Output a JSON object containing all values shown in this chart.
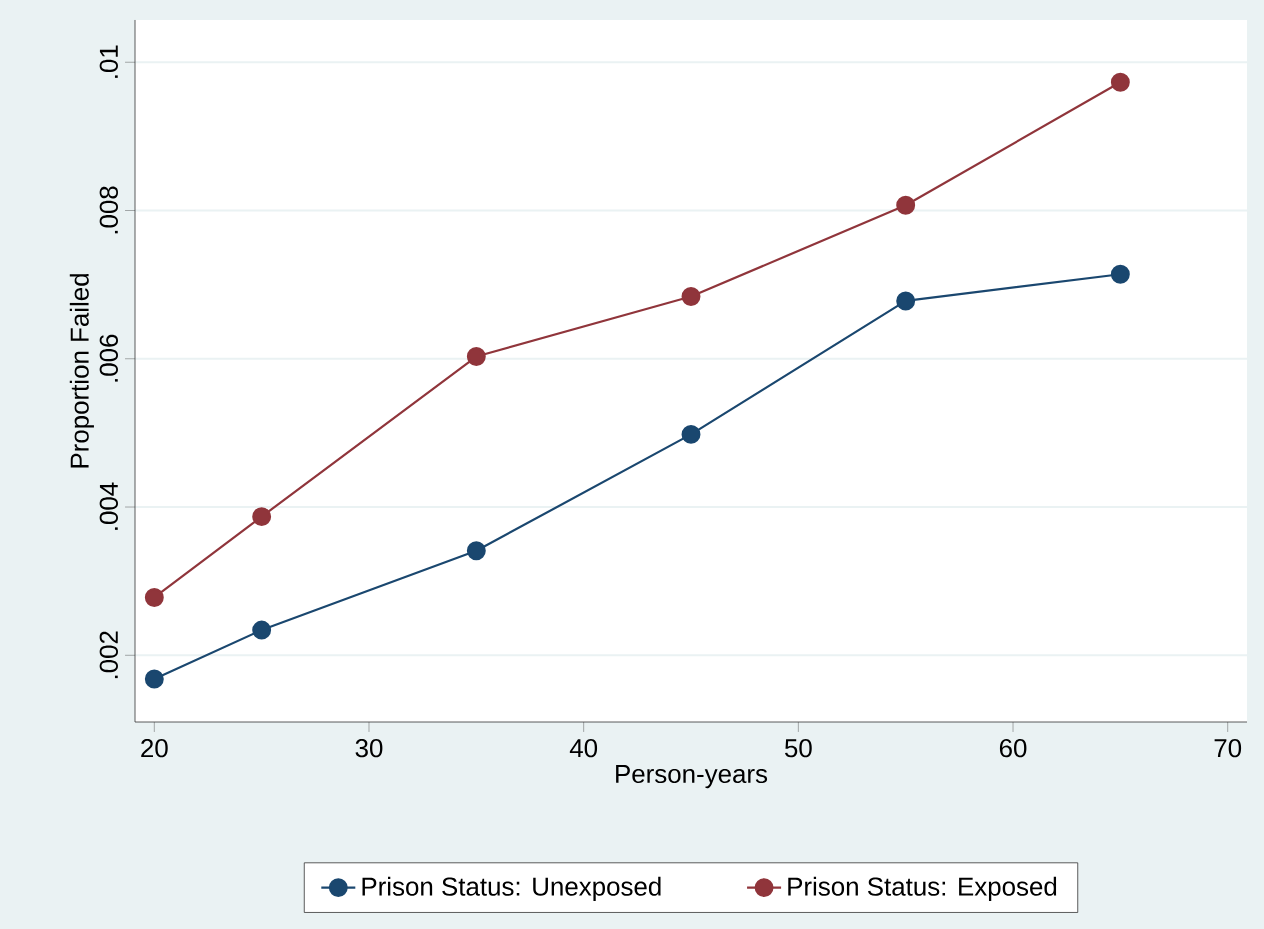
{
  "chart_data": {
    "type": "line",
    "xlabel": "Person-years",
    "ylabel": "Proportion Failed",
    "x": [
      20,
      25,
      35,
      45,
      55,
      65
    ],
    "series": [
      {
        "name": "Prison Status: Unexposed",
        "color": "#1a476f",
        "values": [
          0.00168,
          0.00234,
          0.00341,
          0.00498,
          0.00678,
          0.00714
        ]
      },
      {
        "name": "Prison Status: Exposed",
        "color": "#90353b",
        "values": [
          0.00278,
          0.00387,
          0.00603,
          0.00684,
          0.00807,
          0.00973
        ]
      }
    ],
    "xlim": [
      19.1,
      70.9
    ],
    "ylim": [
      0.0011,
      0.01057
    ],
    "xticks": [
      20,
      30,
      40,
      50,
      60,
      70
    ],
    "yticks": [
      {
        "value": 0.002,
        "label": ".002"
      },
      {
        "value": 0.004,
        "label": ".004"
      },
      {
        "value": 0.006,
        "label": ".006"
      },
      {
        "value": 0.008,
        "label": ".008"
      },
      {
        "value": 0.01,
        "label": ".01"
      }
    ],
    "grid": "y",
    "legend": "bottom",
    "marker": "circle",
    "line_style": "solid"
  }
}
